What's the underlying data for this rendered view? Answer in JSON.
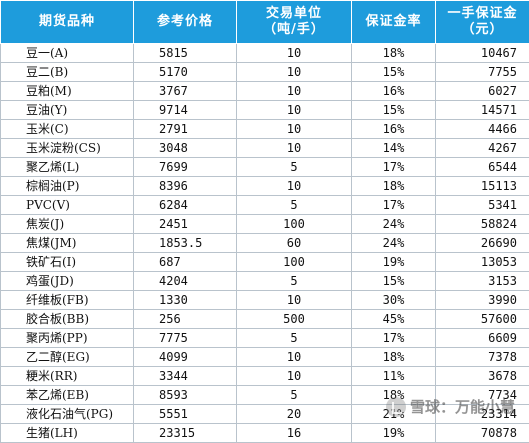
{
  "headers": {
    "variety": "期货品种",
    "reference_price": "参考价格",
    "unit_line1": "交易单位",
    "unit_line2": "（吨/手）",
    "margin_rate": "保证金率",
    "margin_per_lot_line1": "一手保证金",
    "margin_per_lot_line2": "（元）"
  },
  "rows": [
    {
      "name": "豆一(A)",
      "price": "5815",
      "unit": "10",
      "rate": "18%",
      "margin": "10467"
    },
    {
      "name": "豆二(B)",
      "price": "5170",
      "unit": "10",
      "rate": "15%",
      "margin": "7755"
    },
    {
      "name": "豆粕(M)",
      "price": "3767",
      "unit": "10",
      "rate": "16%",
      "margin": "6027"
    },
    {
      "name": "豆油(Y)",
      "price": "9714",
      "unit": "10",
      "rate": "15%",
      "margin": "14571"
    },
    {
      "name": "玉米(C)",
      "price": "2791",
      "unit": "10",
      "rate": "16%",
      "margin": "4466"
    },
    {
      "name": "玉米淀粉(CS)",
      "price": "3048",
      "unit": "10",
      "rate": "14%",
      "margin": "4267"
    },
    {
      "name": "聚乙烯(L)",
      "price": "7699",
      "unit": "5",
      "rate": "17%",
      "margin": "6544"
    },
    {
      "name": "棕榈油(P)",
      "price": "8396",
      "unit": "10",
      "rate": "18%",
      "margin": "15113"
    },
    {
      "name": "PVC(V)",
      "price": "6284",
      "unit": "5",
      "rate": "17%",
      "margin": "5341"
    },
    {
      "name": "焦炭(J)",
      "price": "2451",
      "unit": "100",
      "rate": "24%",
      "margin": "58824"
    },
    {
      "name": "焦煤(JM)",
      "price": "1853.5",
      "unit": "60",
      "rate": "24%",
      "margin": "26690"
    },
    {
      "name": "铁矿石(I)",
      "price": "687",
      "unit": "100",
      "rate": "19%",
      "margin": "13053"
    },
    {
      "name": "鸡蛋(JD)",
      "price": "4204",
      "unit": "5",
      "rate": "15%",
      "margin": "3153"
    },
    {
      "name": "纤维板(FB)",
      "price": "1330",
      "unit": "10",
      "rate": "30%",
      "margin": "3990"
    },
    {
      "name": "胶合板(BB)",
      "price": "256",
      "unit": "500",
      "rate": "45%",
      "margin": "57600"
    },
    {
      "name": "聚丙烯(PP)",
      "price": "7775",
      "unit": "5",
      "rate": "17%",
      "margin": "6609"
    },
    {
      "name": "乙二醇(EG)",
      "price": "4099",
      "unit": "10",
      "rate": "18%",
      "margin": "7378"
    },
    {
      "name": "粳米(RR)",
      "price": "3344",
      "unit": "10",
      "rate": "11%",
      "margin": "3678"
    },
    {
      "name": "苯乙烯(EB)",
      "price": "8593",
      "unit": "5",
      "rate": "18%",
      "margin": "7734"
    },
    {
      "name": "液化石油气(PG)",
      "price": "5551",
      "unit": "20",
      "rate": "21%",
      "margin": "23314"
    },
    {
      "name": "生猪(LH)",
      "price": "23315",
      "unit": "16",
      "rate": "19%",
      "margin": "70878"
    }
  ],
  "watermark": {
    "text": "雪球：万能小慧",
    "logo_icon": "snowball-logo-icon"
  },
  "colors": {
    "header_bg": "#1e9cdc",
    "header_text": "#ffffff",
    "grid": "#b9c3cc"
  }
}
